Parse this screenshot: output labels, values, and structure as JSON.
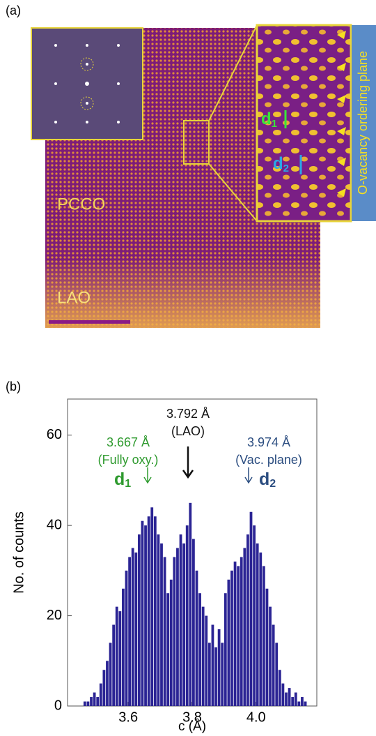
{
  "panel_a": {
    "label": "(a)",
    "film": "PCCO",
    "substrate": "LAO",
    "side_label": "O-vacancy ordering plane",
    "d1": {
      "text": "d",
      "sub": "1"
    },
    "d2": {
      "text": "d",
      "sub": "2"
    }
  },
  "chart_data": {
    "type": "histogram",
    "panel_label": "(b)",
    "x_label": "c (Å)",
    "y_label": "No. of counts",
    "color": "#2b2494",
    "bins": [
      3.45,
      3.46,
      3.47,
      3.48,
      3.49,
      3.5,
      3.51,
      3.52,
      3.53,
      3.54,
      3.55,
      3.56,
      3.57,
      3.58,
      3.59,
      3.6,
      3.61,
      3.62,
      3.63,
      3.64,
      3.65,
      3.66,
      3.67,
      3.68,
      3.69,
      3.7,
      3.71,
      3.72,
      3.73,
      3.74,
      3.75,
      3.76,
      3.77,
      3.78,
      3.79,
      3.8,
      3.81,
      3.82,
      3.83,
      3.84,
      3.85,
      3.86,
      3.87,
      3.88,
      3.89,
      3.9,
      3.91,
      3.92,
      3.93,
      3.94,
      3.95,
      3.96,
      3.97,
      3.98,
      3.99,
      4.0,
      4.01,
      4.02,
      4.03,
      4.04,
      4.05,
      4.06,
      4.07,
      4.08,
      4.09,
      4.1,
      4.11,
      4.12,
      4.13,
      4.14,
      4.15,
      4.16
    ],
    "counts": [
      0,
      1,
      1,
      2,
      3,
      2,
      5,
      8,
      10,
      14,
      18,
      22,
      21,
      26,
      30,
      33,
      35,
      34,
      38,
      41,
      40,
      42,
      44,
      42,
      38,
      36,
      33,
      25,
      28,
      33,
      35,
      38,
      36,
      40,
      45,
      37,
      30,
      25,
      22,
      20,
      14,
      18,
      13,
      17,
      14,
      25,
      28,
      30,
      32,
      31,
      33,
      35,
      38,
      43,
      40,
      36,
      34,
      31,
      26,
      22,
      18,
      14,
      8,
      5,
      3,
      4,
      2,
      3,
      1,
      2,
      1
    ],
    "xlim": [
      3.41,
      4.19
    ],
    "xticks": [
      3.6,
      3.8,
      {
        "value": 4,
        "label": "4.0"
      }
    ],
    "ylim": [
      0,
      68
    ],
    "yticks": [
      0,
      20,
      40,
      60
    ],
    "annotations": [
      {
        "text": "3.667 Å",
        "detail": "(Fully oxy.)",
        "marker": {
          "text": "d",
          "sub": "1"
        },
        "color": "#2e9a2e"
      },
      {
        "text": "3.792 Å",
        "detail": "(LAO)",
        "color": "#111111"
      },
      {
        "text": "3.974 Å",
        "detail": "(Vac. plane)",
        "marker": {
          "text": "d",
          "sub": "2"
        },
        "color": "#2b4d80"
      }
    ]
  }
}
